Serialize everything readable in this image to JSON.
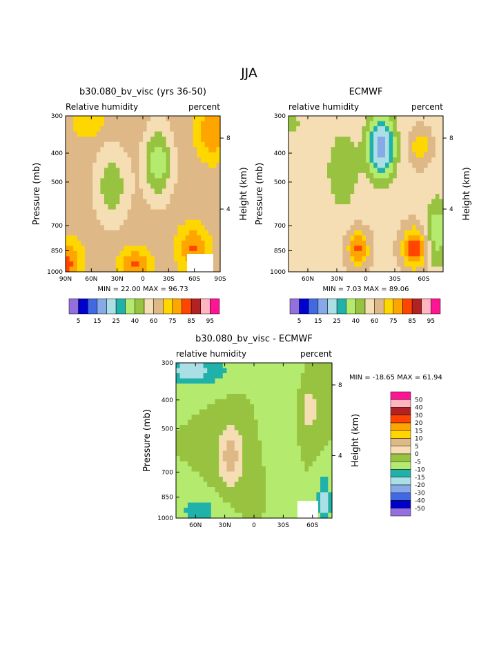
{
  "page": {
    "title": "JJA"
  },
  "chart_data": [
    {
      "type": "heatmap",
      "title": "b30.080_bv_visc (yrs 36-50)",
      "left_label": "Relative humidity",
      "right_label": "percent",
      "ylabel": "Pressure (mb)",
      "y2label": "Height (km)",
      "x_ticks": [
        "90N",
        "60N",
        "30N",
        "0",
        "30S",
        "60S",
        "90S"
      ],
      "x_lim": [
        90,
        -90
      ],
      "y_ticks": [
        "300",
        "400",
        "500",
        "700",
        "850",
        "1000"
      ],
      "y_lim": [
        1000,
        300
      ],
      "y2_ticks": [
        "8",
        "4"
      ],
      "min_max": "MIN =   22.00   MAX =   96.73",
      "colorbar_labels": [
        "5",
        "15",
        "25",
        "40",
        "60",
        "75",
        "85",
        "95"
      ],
      "colors": [
        "#9370db",
        "#0000cd",
        "#4169e1",
        "#87a9e8",
        "#aadfe6",
        "#20b2aa",
        "#b4eb6e",
        "#98c340",
        "#f5deb3",
        "#deb887",
        "#ffd700",
        "#ffa500",
        "#ff4500",
        "#b22222",
        "#ffb6c1",
        "#ff1493"
      ]
    },
    {
      "type": "heatmap",
      "title": "ECMWF",
      "left_label": "relative humidity",
      "right_label": "percent",
      "ylabel": "Pressure (mb)",
      "y2label": "Height (km)",
      "x_ticks": [
        "60N",
        "30N",
        "0",
        "30S",
        "60S"
      ],
      "x_lim": [
        80,
        -80
      ],
      "y_ticks": [
        "300",
        "400",
        "500",
        "700",
        "850",
        "1000"
      ],
      "y_lim": [
        1000,
        300
      ],
      "y2_ticks": [
        "8",
        "4"
      ],
      "min_max": "MIN =    7.03   MAX =   89.06",
      "colorbar_labels": [
        "5",
        "15",
        "25",
        "40",
        "60",
        "75",
        "85",
        "95"
      ],
      "colors": [
        "#9370db",
        "#0000cd",
        "#4169e1",
        "#87a9e8",
        "#aadfe6",
        "#20b2aa",
        "#b4eb6e",
        "#98c340",
        "#f5deb3",
        "#deb887",
        "#ffd700",
        "#ffa500",
        "#ff4500",
        "#b22222",
        "#ffb6c1",
        "#ff1493"
      ]
    },
    {
      "type": "heatmap",
      "title": "b30.080_bv_visc - ECMWF",
      "left_label": "relative humidity",
      "right_label": "percent",
      "ylabel": "Pressure (mb)",
      "y2label": "Height (km)",
      "x_ticks": [
        "60N",
        "30N",
        "0",
        "30S",
        "60S"
      ],
      "x_lim": [
        80,
        -80
      ],
      "y_ticks": [
        "300",
        "400",
        "500",
        "700",
        "850",
        "1000"
      ],
      "y_lim": [
        1000,
        300
      ],
      "y2_ticks": [
        "8",
        "4"
      ],
      "min_max": "MIN = -18.65   MAX =  61.94",
      "colorbar_labels": [
        "50",
        "40",
        "30",
        "20",
        "15",
        "10",
        "5",
        "0",
        "-5",
        "-10",
        "-15",
        "-20",
        "-30",
        "-40",
        "-50"
      ],
      "colors": [
        "#ff1493",
        "#ffb6c1",
        "#b22222",
        "#ff4500",
        "#ffa500",
        "#ffd700",
        "#deb887",
        "#f5deb3",
        "#98c340",
        "#b4eb6e",
        "#20b2aa",
        "#aadfe6",
        "#87a9e8",
        "#4169e1",
        "#0000cd",
        "#9370db"
      ]
    }
  ]
}
